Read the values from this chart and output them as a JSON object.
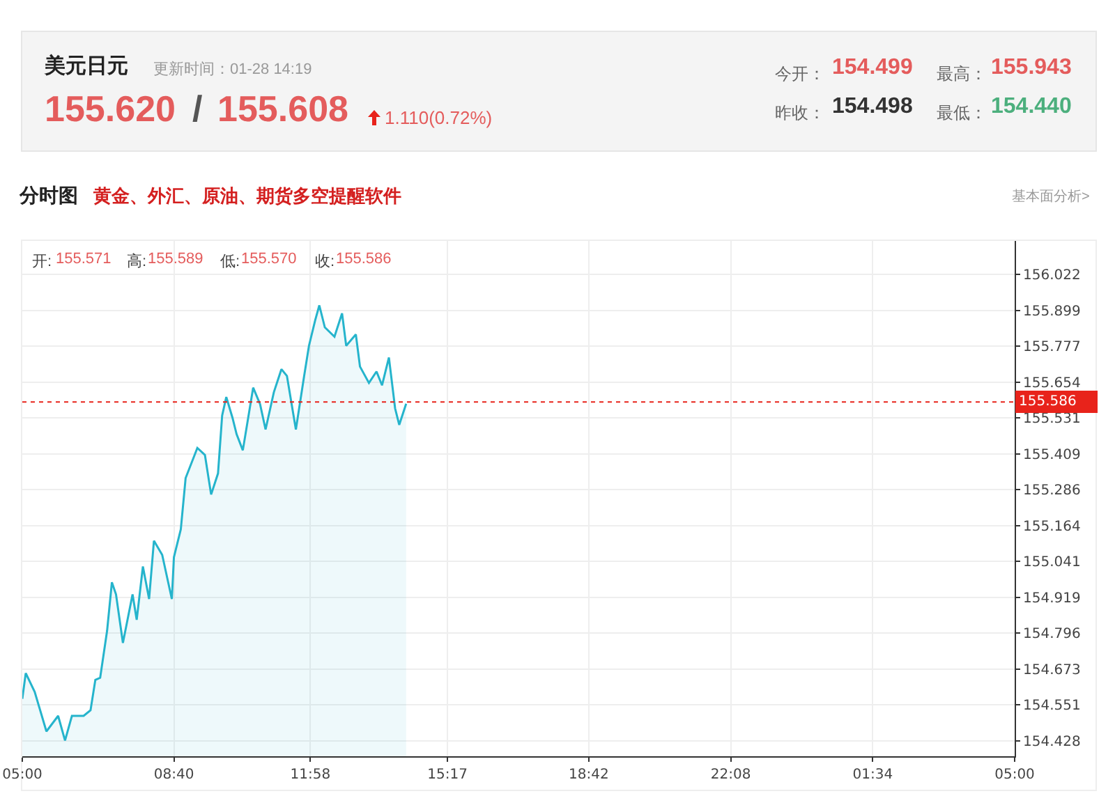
{
  "chart_data": {
    "type": "area",
    "title": "美元日元",
    "subtitle": "更新时间：01-28 14:19",
    "annotations": [
      "155.620",
      "/",
      "155.608",
      "1.110(0.72%)",
      "今开：",
      "154.499",
      "最高：",
      "155.943",
      "昨收：",
      "154.498",
      "最低：",
      "154.440",
      "分时图",
      "黄金、外汇、原油、期货多空提醒软件",
      "基本面分析>",
      "开:",
      "155.571",
      "高:",
      "155.589",
      "低:",
      "155.570",
      "收:",
      "155.586"
    ],
    "x": [
      "--01-28T05:00",
      "--01-28T05:05",
      "--01-28T05:18",
      "--01-28T05:35",
      "--01-28T05:52",
      "--01-28T06:02",
      "--01-28T06:12",
      "--01-28T06:29",
      "--01-28T06:39",
      "--01-28T06:46",
      "--01-28T06:53",
      "--01-28T07:03",
      "--01-28T07:10",
      "--01-28T07:16",
      "--01-28T07:26",
      "--01-28T07:40",
      "--01-28T07:46",
      "--01-28T07:55",
      "--01-28T08:04",
      "--01-28T08:11",
      "--01-28T08:23",
      "--01-28T08:37",
      "--01-28T08:40",
      "--01-28T08:50",
      "--01-28T08:57",
      "--01-28T09:14",
      "--01-28T09:25",
      "--01-28T09:34",
      "--01-28T09:44",
      "--01-28T09:50",
      "--01-28T09:56",
      "--01-28T10:05",
      "--01-28T10:11",
      "--01-28T10:20",
      "--01-28T10:35",
      "--01-28T10:45",
      "--01-28T10:53",
      "--01-28T11:05",
      "--01-28T11:16",
      "--01-28T11:24",
      "--01-28T11:37",
      "--01-28T11:49",
      "--01-28T11:56",
      "--01-28T12:05",
      "--01-28T12:11",
      "--01-28T12:19",
      "--01-28T12:33",
      "--01-28T12:44",
      "--01-28T12:50",
      "--01-28T13:04",
      "--01-28T13:10",
      "--01-28T13:23",
      "--01-28T13:34",
      "--01-28T13:42",
      "--01-28T13:52",
      "--01-28T14:01",
      "--01-28T14:07",
      "--01-28T14:17"
    ],
    "series": [
      {
        "color": "#25b4cc",
        "values": [
          154.572,
          154.66,
          154.596,
          154.461,
          154.514,
          154.43,
          154.514,
          154.514,
          154.533,
          154.637,
          154.644,
          154.804,
          154.97,
          154.929,
          154.763,
          154.929,
          154.842,
          155.024,
          154.913,
          155.112,
          155.064,
          154.913,
          155.056,
          155.151,
          155.326,
          155.429,
          155.405,
          155.27,
          155.342,
          155.54,
          155.603,
          155.532,
          155.476,
          155.421,
          155.635,
          155.579,
          155.492,
          155.619,
          155.698,
          155.675,
          155.492,
          155.675,
          155.778,
          155.865,
          155.916,
          155.841,
          155.809,
          155.889,
          155.778,
          155.817,
          155.707,
          155.651,
          155.69,
          155.643,
          155.738,
          155.564,
          155.508,
          155.58
        ]
      }
    ],
    "xlim": [
      "--01-28T05:00",
      "--01-29T05:00"
    ],
    "xticks": [
      {
        "value": "--01-28T05:00",
        "label": "05:00"
      },
      {
        "value": "--01-28T08:40",
        "label": "08:40"
      },
      {
        "value": "--01-28T11:58",
        "label": "11:58"
      },
      {
        "value": "--01-28T15:17",
        "label": "15:17"
      },
      {
        "value": "--01-28T18:42",
        "label": "18:42"
      },
      {
        "value": "--01-28T22:08",
        "label": "22:08"
      },
      {
        "value": "--01-29T01:34",
        "label": "01:34"
      },
      {
        "value": "--01-29T05:00",
        "label": "05:00"
      }
    ],
    "ylim": [
      154.376,
      156.136
    ],
    "yticks": [
      154.428,
      154.551,
      154.673,
      154.796,
      154.919,
      155.041,
      155.164,
      155.286,
      155.409,
      155.531,
      155.654,
      155.777,
      155.899,
      156.022
    ],
    "grid": true,
    "marker": "none",
    "line_style": "solid",
    "ref_lines": [
      {
        "axis": "y",
        "value": 155.586,
        "label": "155.586",
        "color": "#e8231b",
        "line_style": "dotted"
      }
    ]
  }
}
